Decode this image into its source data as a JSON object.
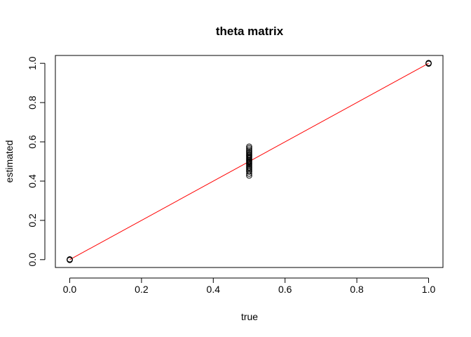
{
  "chart_data": {
    "type": "scatter",
    "title": "theta matrix",
    "xlabel": "true",
    "ylabel": "estimated",
    "xlim": [
      -0.04,
      1.04
    ],
    "ylim": [
      -0.04,
      1.04
    ],
    "x_ticks": [
      0.0,
      0.2,
      0.4,
      0.6,
      0.8,
      1.0
    ],
    "x_tick_labels": [
      "0.0",
      "0.2",
      "0.4",
      "0.6",
      "0.8",
      "1.0"
    ],
    "y_ticks": [
      0.0,
      0.2,
      0.4,
      0.6,
      0.8,
      1.0
    ],
    "y_tick_labels": [
      "0.0",
      "0.2",
      "0.4",
      "0.6",
      "0.8",
      "1.0"
    ],
    "grid": false,
    "series": [
      {
        "marker": "open-circle",
        "color": "#000000",
        "points": [
          [
            0.0,
            0.0
          ],
          [
            0.0,
            0.0
          ],
          [
            0.0,
            0.002
          ],
          [
            0.0,
            -0.002
          ],
          [
            1.0,
            1.0
          ],
          [
            1.0,
            1.0
          ],
          [
            1.0,
            1.002
          ],
          [
            1.0,
            0.998
          ],
          [
            0.5,
            0.428
          ],
          [
            0.5,
            0.438
          ],
          [
            0.5,
            0.448
          ],
          [
            0.5,
            0.455
          ],
          [
            0.5,
            0.462
          ],
          [
            0.5,
            0.468
          ],
          [
            0.5,
            0.474
          ],
          [
            0.5,
            0.48
          ],
          [
            0.5,
            0.486
          ],
          [
            0.5,
            0.492
          ],
          [
            0.5,
            0.497
          ],
          [
            0.5,
            0.502
          ],
          [
            0.5,
            0.507
          ],
          [
            0.5,
            0.512
          ],
          [
            0.5,
            0.517
          ],
          [
            0.5,
            0.522
          ],
          [
            0.5,
            0.527
          ],
          [
            0.5,
            0.532
          ],
          [
            0.5,
            0.538
          ],
          [
            0.5,
            0.545
          ],
          [
            0.5,
            0.552
          ],
          [
            0.5,
            0.56
          ],
          [
            0.5,
            0.568
          ],
          [
            0.5,
            0.576
          ]
        ]
      }
    ],
    "reference_line": {
      "x": [
        0.0,
        1.0
      ],
      "y": [
        0.0,
        1.0
      ],
      "color": "#ff0000"
    }
  }
}
